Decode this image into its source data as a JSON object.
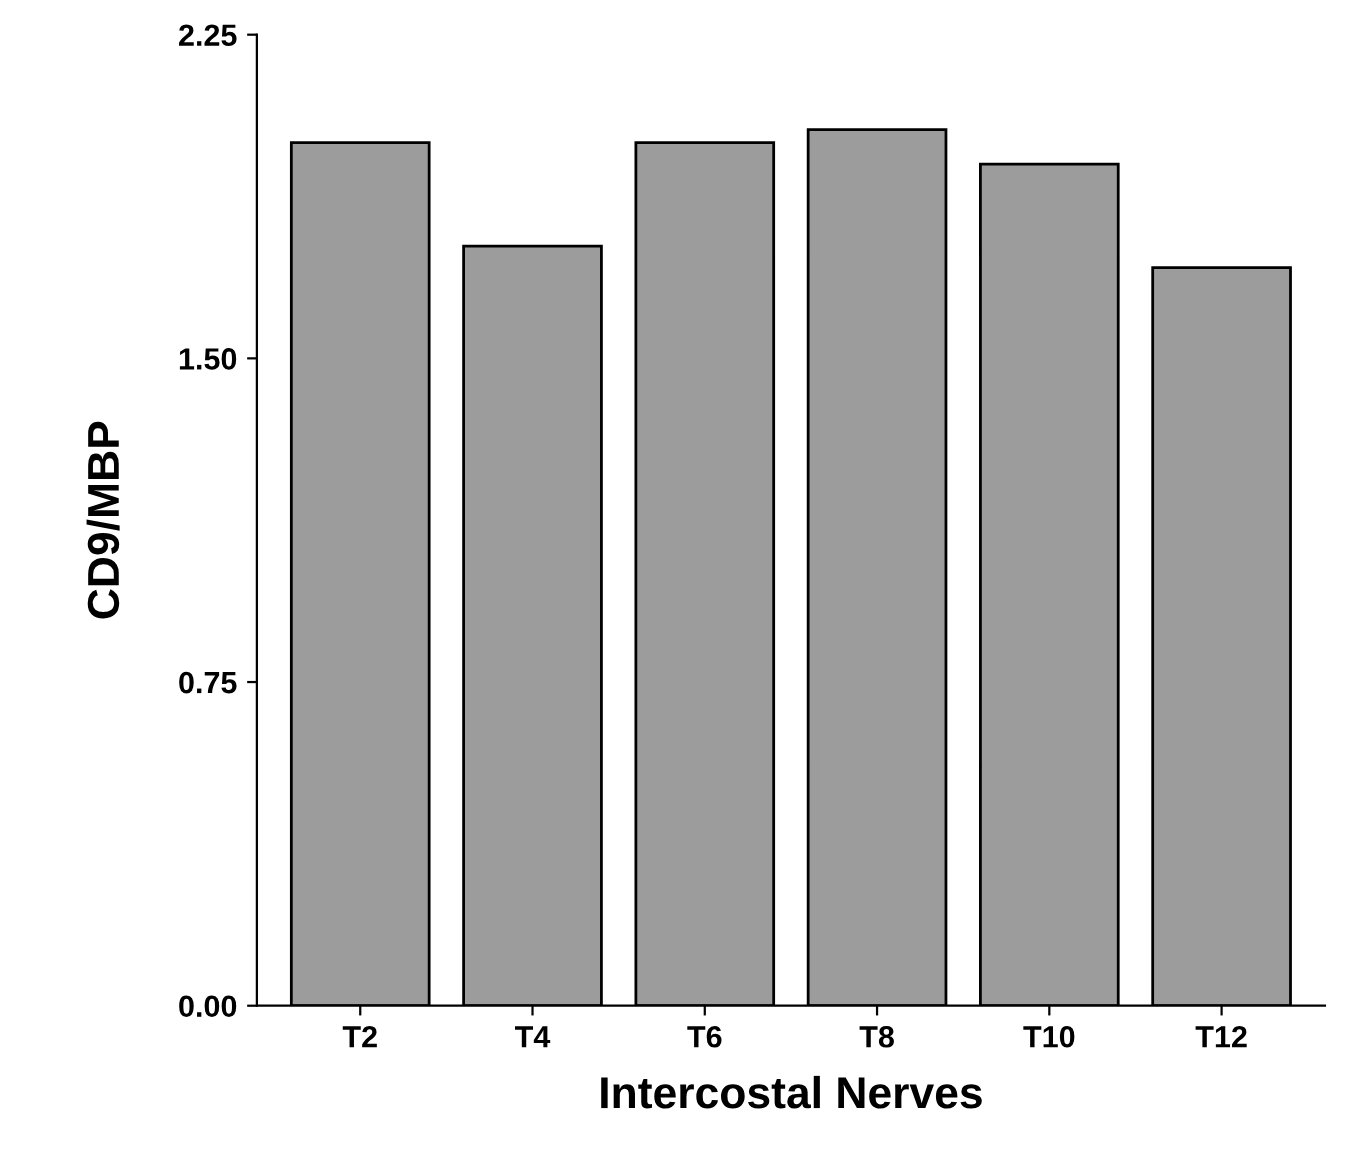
{
  "chart_data": {
    "type": "bar",
    "xlabel": "Intercostal Nerves",
    "ylabel": "CD9/MBP",
    "categories": [
      "T2",
      "T4",
      "T6",
      "T8",
      "T10",
      "T12"
    ],
    "values": [
      2.0,
      1.76,
      2.0,
      2.03,
      1.95,
      1.71
    ],
    "color": "#9c9c9c",
    "ylim": [
      0,
      2.25
    ],
    "yticks": [
      {
        "value": 0,
        "label": "0.00"
      },
      {
        "value": 0.75,
        "label": "0.75"
      },
      {
        "value": 1.5,
        "label": "1.50"
      },
      {
        "value": 2.25,
        "label": "2.25"
      }
    ],
    "grid": false,
    "legend": false
  }
}
